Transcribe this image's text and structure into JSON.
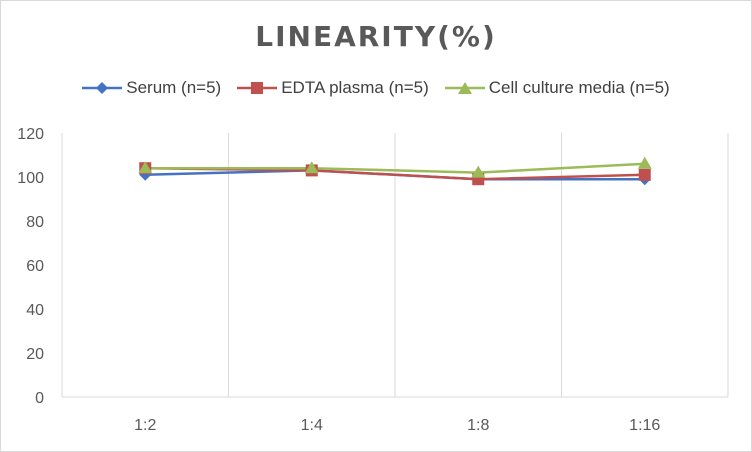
{
  "chart_data": {
    "type": "line",
    "title": "LINEARITY(%)",
    "categories": [
      "1:2",
      "1:4",
      "1:8",
      "1:16"
    ],
    "series": [
      {
        "name": "Serum (n=5)",
        "color": "#4472c4",
        "marker": "diamond",
        "values": [
          101,
          103,
          99,
          99
        ]
      },
      {
        "name": "EDTA plasma (n=5)",
        "color": "#c0504d",
        "marker": "square",
        "values": [
          104,
          103,
          99,
          101
        ]
      },
      {
        "name": "Cell culture media (n=5)",
        "color": "#9bbb59",
        "marker": "triangle",
        "values": [
          104,
          104,
          102,
          106
        ]
      }
    ],
    "ylim": [
      0,
      120
    ],
    "yticks": [
      0,
      20,
      40,
      60,
      80,
      100,
      120
    ],
    "xlabel": "",
    "ylabel": "",
    "grid": "vertical",
    "legend_position": "top"
  }
}
